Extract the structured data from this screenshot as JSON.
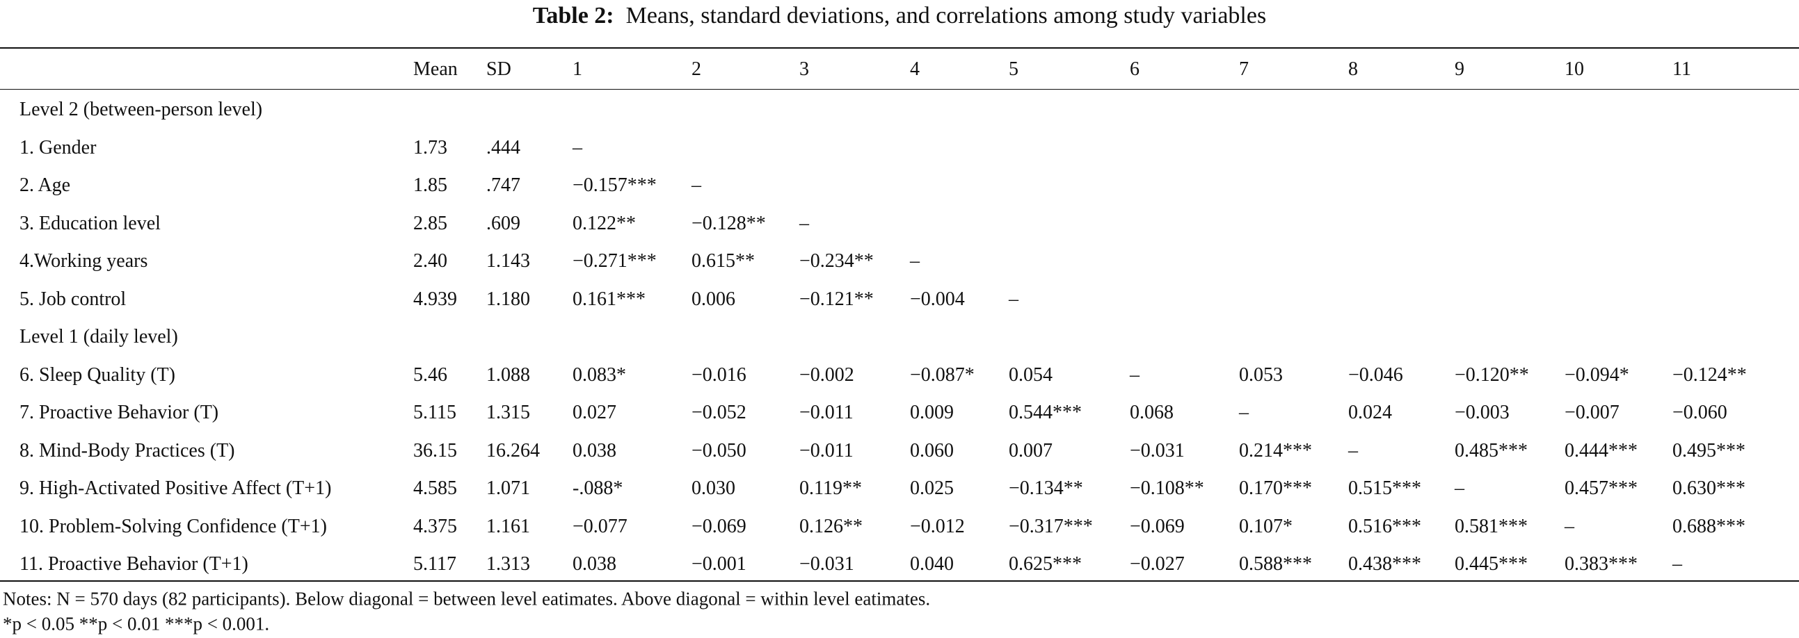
{
  "title": {
    "label": "Table 2:",
    "text": "Means, standard deviations, and correlations among study variables"
  },
  "table": {
    "header": [
      "Mean",
      "SD",
      "1",
      "2",
      "3",
      "4",
      "5",
      "6",
      "7",
      "8",
      "9",
      "10",
      "11"
    ],
    "rows": [
      {
        "section": "Level 2 (between-person level)"
      },
      {
        "cells": [
          "1. Gender",
          "1.73",
          ".444",
          "–"
        ]
      },
      {
        "cells": [
          "2. Age",
          "1.85",
          ".747",
          "−0.157***",
          "–"
        ]
      },
      {
        "cells": [
          "3. Education level",
          "2.85",
          ".609",
          "0.122**",
          "−0.128**",
          "–"
        ]
      },
      {
        "cells": [
          "4.Working years",
          "2.40",
          "1.143",
          "−0.271***",
          "0.615**",
          "−0.234**",
          "–"
        ]
      },
      {
        "cells": [
          "5. Job control",
          "4.939",
          "1.180",
          "0.161***",
          "0.006",
          "−0.121**",
          "−0.004",
          "–"
        ]
      },
      {
        "section": "Level 1 (daily level)"
      },
      {
        "cells": [
          "6. Sleep Quality (T)",
          "5.46",
          "1.088",
          "0.083*",
          "−0.016",
          "−0.002",
          "−0.087*",
          "0.054",
          "–",
          "0.053",
          "−0.046",
          "−0.120**",
          "−0.094*",
          "−0.124**"
        ]
      },
      {
        "cells": [
          "7. Proactive Behavior (T)",
          "5.115",
          "1.315",
          "0.027",
          "−0.052",
          "−0.011",
          "0.009",
          "0.544***",
          "0.068",
          "–",
          "0.024",
          "−0.003",
          "−0.007",
          "−0.060"
        ]
      },
      {
        "cells": [
          "8. Mind-Body Practices (T)",
          "36.15",
          "16.264",
          "0.038",
          "−0.050",
          "−0.011",
          "0.060",
          "0.007",
          "−0.031",
          "0.214***",
          "–",
          "0.485***",
          "0.444***",
          "0.495***"
        ]
      },
      {
        "cells": [
          "9. High-Activated Positive Affect (T+1)",
          "4.585",
          "1.071",
          "-.088*",
          "0.030",
          "0.119**",
          "0.025",
          "−0.134**",
          "−0.108**",
          "0.170***",
          "0.515***",
          "–",
          "0.457***",
          "0.630***"
        ]
      },
      {
        "cells": [
          "10. Problem-Solving Confidence (T+1)",
          "4.375",
          "1.161",
          "−0.077",
          "−0.069",
          "0.126**",
          "−0.012",
          "−0.317***",
          "−0.069",
          "0.107*",
          "0.516***",
          "0.581***",
          "–",
          "0.688***"
        ]
      },
      {
        "cells": [
          "11. Proactive Behavior (T+1)",
          "5.117",
          "1.313",
          "0.038",
          "−0.001",
          "−0.031",
          "0.040",
          "0.625***",
          "−0.027",
          "0.588***",
          "0.438***",
          "0.445***",
          "0.383***",
          "–"
        ]
      }
    ]
  },
  "notes": [
    "Notes: N = 570 days (82 participants). Below diagonal = between level eatimates. Above diagonal = within level eatimates.",
    "*p < 0.05 **p < 0.01 ***p < 0.001."
  ]
}
